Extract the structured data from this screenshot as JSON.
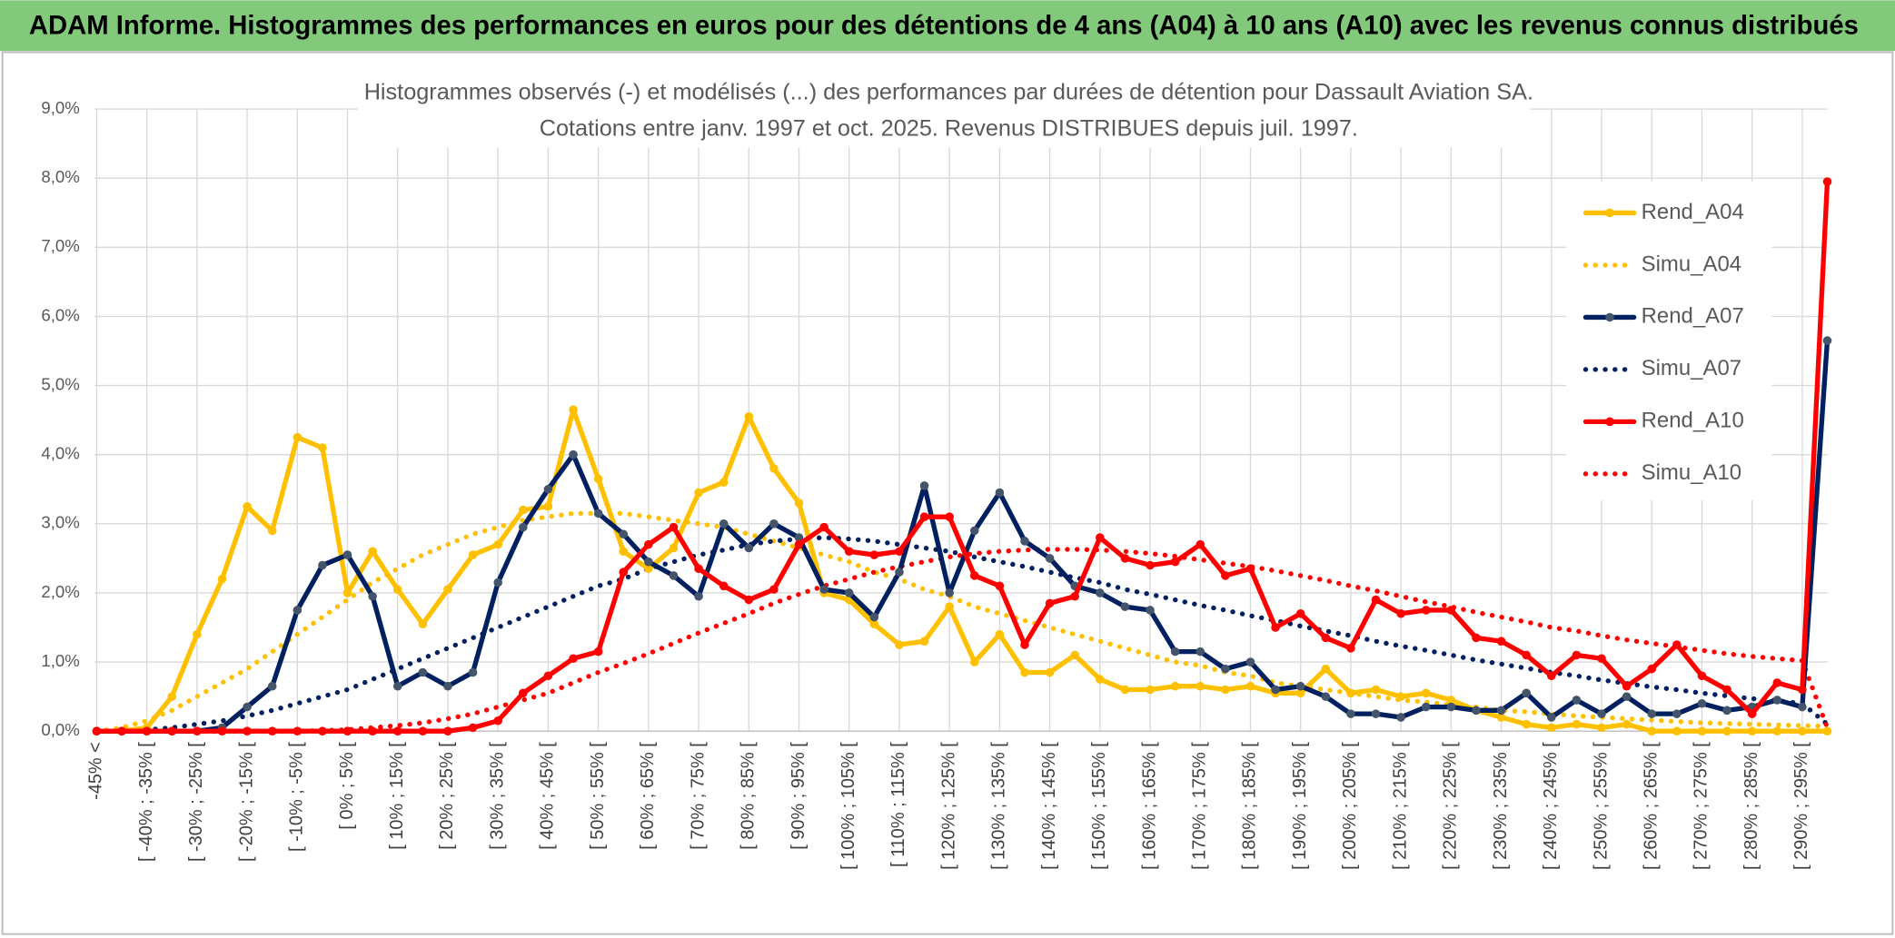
{
  "header": {
    "title": "ADAM Informe. Histogrammes des performances en euros pour des détentions de 4 ans (A04) à 10 ans (A10) avec les revenus connus distribués"
  },
  "chart_data": {
    "type": "line",
    "title": "Histogrammes observés (-) et modélisés (...) des performances par durées de détention pour Dassault Aviation SA.",
    "subtitle": "Cotations entre janv. 1997 et oct. 2025. Revenus DISTRIBUES depuis juil. 1997.",
    "categories": [
      "-45% <",
      null,
      "[ -40% ; -35% [",
      null,
      "[ -30% ; -25% [",
      null,
      "[ -20% ; -15% [",
      null,
      "[ -10% ; -5% [",
      null,
      "[ 0% ; 5% [",
      null,
      "[ 10% ; 15% [",
      null,
      "[ 20% ; 25% [",
      null,
      "[ 30% ; 35% [",
      null,
      "[ 40% ; 45% [",
      null,
      "[ 50% ; 55% [",
      null,
      "[ 60% ; 65% [",
      null,
      "[ 70% ; 75% [",
      null,
      "[ 80% ; 85% [",
      null,
      "[ 90% ; 95% [",
      null,
      "[ 100% ; 105% [",
      null,
      "[ 110% ; 115% [",
      null,
      "[ 120% ; 125% [",
      null,
      "[ 130% ; 135% [",
      null,
      "[ 140% ; 145% [",
      null,
      "[ 150% ; 155% [",
      null,
      "[ 160% ; 165% [",
      null,
      "[ 170% ; 175% [",
      null,
      "[ 180% ; 185% [",
      null,
      "[ 190% ; 195% [",
      null,
      "[ 200% ; 205% [",
      null,
      "[ 210% ; 215% [",
      null,
      "[ 220% ; 225% [",
      null,
      "[ 230% ; 235% [",
      null,
      "[ 240% ; 245% [",
      null,
      "[ 250% ; 255% [",
      null,
      "[ 260% ; 265% [",
      null,
      "[ 270% ; 275% [",
      null,
      "[ 280% ; 285% [",
      null,
      "[ 290% ; 295% [",
      null
    ],
    "series": [
      {
        "name": "Rend_A04",
        "color": "#FFC000",
        "style": "solid",
        "values": [
          0,
          0,
          0.05,
          0.5,
          1.4,
          2.2,
          3.25,
          2.9,
          4.25,
          4.1,
          2.0,
          2.6,
          2.05,
          1.55,
          2.05,
          2.55,
          2.7,
          3.2,
          3.25,
          4.65,
          3.65,
          2.6,
          2.35,
          2.65,
          3.45,
          3.6,
          4.55,
          3.8,
          3.3,
          2.0,
          1.9,
          1.55,
          1.25,
          1.3,
          1.8,
          1.0,
          1.4,
          0.85,
          0.85,
          1.1,
          0.75,
          0.6,
          0.6,
          0.65,
          0.65,
          0.6,
          0.65,
          0.55,
          0.55,
          0.9,
          0.55,
          0.6,
          0.5,
          0.55,
          0.45,
          0.3,
          0.2,
          0.1,
          0.05,
          0.1,
          0.05,
          0.1,
          0,
          0,
          0,
          0,
          0,
          0,
          0,
          0
        ]
      },
      {
        "name": "Simu_A04",
        "color": "#FFC000",
        "style": "dotted",
        "values": [
          0,
          0.05,
          0.15,
          0.3,
          0.5,
          0.7,
          0.9,
          1.15,
          1.4,
          1.65,
          1.9,
          2.15,
          2.35,
          2.55,
          2.7,
          2.85,
          2.95,
          3.05,
          3.1,
          3.15,
          3.15,
          3.15,
          3.1,
          3.05,
          3.0,
          2.95,
          2.85,
          2.75,
          2.65,
          2.55,
          2.45,
          2.3,
          2.2,
          2.05,
          1.95,
          1.8,
          1.7,
          1.6,
          1.5,
          1.4,
          1.3,
          1.2,
          1.1,
          1.0,
          0.95,
          0.85,
          0.8,
          0.7,
          0.65,
          0.6,
          0.55,
          0.5,
          0.45,
          0.42,
          0.38,
          0.35,
          0.3,
          0.28,
          0.25,
          0.22,
          0.2,
          0.18,
          0.16,
          0.14,
          0.12,
          0.11,
          0.1,
          0.09,
          0.08,
          0.07
        ]
      },
      {
        "name": "Rend_A07",
        "color": "#002060",
        "style": "solid",
        "values": [
          0,
          0,
          0,
          0,
          0,
          0.05,
          0.35,
          0.65,
          1.75,
          2.4,
          2.55,
          1.95,
          0.65,
          0.85,
          0.65,
          0.85,
          2.15,
          2.95,
          3.5,
          4.0,
          3.15,
          2.85,
          2.45,
          2.25,
          1.95,
          3.0,
          2.65,
          3.0,
          2.8,
          2.05,
          2.0,
          1.65,
          2.3,
          3.55,
          2.0,
          2.9,
          3.45,
          2.75,
          2.5,
          2.1,
          2.0,
          1.8,
          1.75,
          1.15,
          1.15,
          0.9,
          1.0,
          0.6,
          0.65,
          0.5,
          0.25,
          0.25,
          0.2,
          0.35,
          0.35,
          0.3,
          0.3,
          0.55,
          0.2,
          0.45,
          0.25,
          0.5,
          0.25,
          0.25,
          0.4,
          0.3,
          0.35,
          0.45,
          0.35,
          5.65
        ]
      },
      {
        "name": "Simu_A07",
        "color": "#002060",
        "style": "dotted",
        "values": [
          0,
          0,
          0.02,
          0.05,
          0.1,
          0.15,
          0.22,
          0.3,
          0.4,
          0.5,
          0.6,
          0.75,
          0.9,
          1.05,
          1.2,
          1.35,
          1.5,
          1.65,
          1.8,
          1.95,
          2.1,
          2.2,
          2.35,
          2.45,
          2.55,
          2.62,
          2.7,
          2.75,
          2.78,
          2.8,
          2.78,
          2.75,
          2.7,
          2.65,
          2.6,
          2.52,
          2.45,
          2.38,
          2.3,
          2.22,
          2.15,
          2.05,
          1.98,
          1.9,
          1.82,
          1.75,
          1.67,
          1.6,
          1.52,
          1.45,
          1.38,
          1.3,
          1.23,
          1.17,
          1.1,
          1.03,
          0.97,
          0.91,
          0.85,
          0.8,
          0.74,
          0.69,
          0.64,
          0.6,
          0.55,
          0.51,
          0.47,
          0.44,
          0.4,
          0.1
        ]
      },
      {
        "name": "Rend_A10",
        "color": "#FF0000",
        "style": "solid",
        "values": [
          0,
          0,
          0,
          0,
          0,
          0,
          0,
          0,
          0,
          0,
          0,
          0,
          0,
          0,
          0,
          0.05,
          0.15,
          0.55,
          0.8,
          1.05,
          1.15,
          2.3,
          2.7,
          2.95,
          2.35,
          2.1,
          1.9,
          2.05,
          2.7,
          2.95,
          2.6,
          2.55,
          2.6,
          3.1,
          3.1,
          2.25,
          2.1,
          1.25,
          1.85,
          1.95,
          2.8,
          2.5,
          2.4,
          2.45,
          2.7,
          2.25,
          2.35,
          1.5,
          1.7,
          1.35,
          1.2,
          1.9,
          1.7,
          1.75,
          1.75,
          1.35,
          1.3,
          1.1,
          0.8,
          1.1,
          1.05,
          0.65,
          0.9,
          1.25,
          0.8,
          0.6,
          0.25,
          0.7,
          0.6,
          7.95
        ]
      },
      {
        "name": "Simu_A10",
        "color": "#FF0000",
        "style": "dotted",
        "values": [
          0,
          0,
          0,
          0,
          0,
          0,
          0,
          0,
          0,
          0.01,
          0.02,
          0.05,
          0.08,
          0.12,
          0.18,
          0.25,
          0.35,
          0.45,
          0.55,
          0.7,
          0.85,
          0.98,
          1.12,
          1.27,
          1.42,
          1.56,
          1.7,
          1.85,
          1.98,
          2.1,
          2.2,
          2.3,
          2.38,
          2.45,
          2.52,
          2.57,
          2.6,
          2.62,
          2.63,
          2.63,
          2.62,
          2.6,
          2.57,
          2.53,
          2.48,
          2.43,
          2.38,
          2.32,
          2.25,
          2.18,
          2.1,
          2.03,
          1.95,
          1.87,
          1.8,
          1.72,
          1.65,
          1.58,
          1.5,
          1.45,
          1.38,
          1.32,
          1.27,
          1.22,
          1.17,
          1.12,
          1.08,
          1.05,
          1.02,
          0.05
        ]
      }
    ],
    "ylim": [
      0,
      9
    ],
    "yticks": [
      {
        "value": 0,
        "label": "0,0%"
      },
      {
        "value": 1,
        "label": "1,0%"
      },
      {
        "value": 2,
        "label": "2,0%"
      },
      {
        "value": 3,
        "label": "3,0%"
      },
      {
        "value": 4,
        "label": "4,0%"
      },
      {
        "value": 5,
        "label": "5,0%"
      },
      {
        "value": 6,
        "label": "6,0%"
      },
      {
        "value": 7,
        "label": "7,0%"
      },
      {
        "value": 8,
        "label": "8,0%"
      },
      {
        "value": 9,
        "label": "9,0%"
      }
    ],
    "grid": true,
    "legend": "right"
  }
}
